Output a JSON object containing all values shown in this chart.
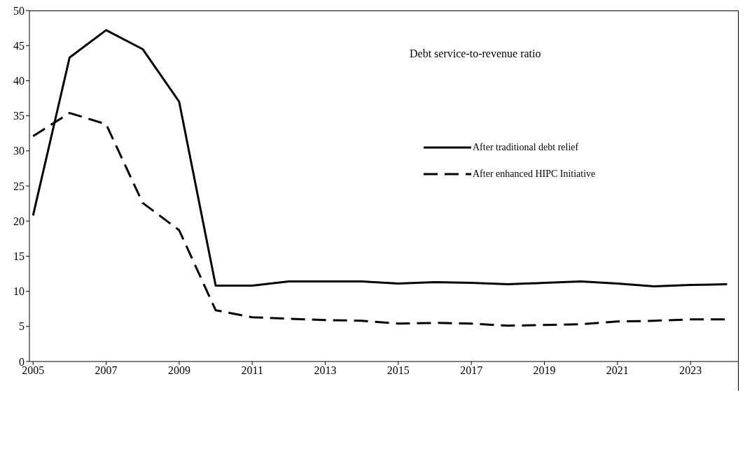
{
  "chart_data": {
    "type": "line",
    "x": [
      2005,
      2006,
      2007,
      2008,
      2009,
      2010,
      2011,
      2012,
      2013,
      2014,
      2015,
      2016,
      2017,
      2018,
      2019,
      2020,
      2021,
      2022,
      2023,
      2024
    ],
    "series": [
      {
        "name": "After traditional debt relief",
        "color": "#000000",
        "line_style": "solid",
        "values": [
          20.8,
          43.3,
          47.2,
          44.5,
          37,
          10.8,
          10.8,
          11.4,
          11.4,
          11.4,
          11.1,
          11.3,
          11.2,
          11,
          11.2,
          11.4,
          11.1,
          10.7,
          10.9,
          11
        ]
      },
      {
        "name": "After enhanced HIPC Initiative",
        "color": "#000000",
        "line_style": "dashed",
        "values": [
          32.1,
          35.4,
          33.8,
          22.6,
          18.7,
          7.3,
          6.3,
          6.1,
          5.9,
          5.8,
          5.4,
          5.5,
          5.4,
          5.1,
          5.2,
          5.3,
          5.7,
          5.8,
          6,
          6
        ]
      }
    ],
    "xlim": [
      2004.9,
      2024.3
    ],
    "xticks": [
      2005,
      2007,
      2009,
      2011,
      2013,
      2015,
      2017,
      2019,
      2021,
      2023
    ],
    "ylim": [
      0,
      50
    ],
    "yticks": [
      0,
      5,
      10,
      15,
      20,
      25,
      30,
      35,
      40,
      45,
      50
    ],
    "annotations": [
      "Debt service-to-revenue ratio"
    ],
    "grid": false,
    "legend": "right",
    "marker": "none"
  }
}
